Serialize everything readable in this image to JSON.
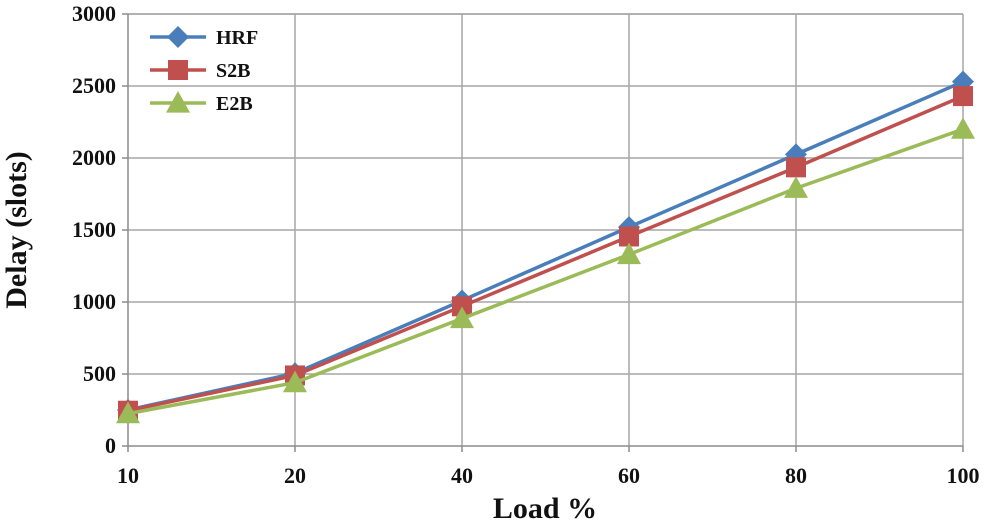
{
  "chart_data": {
    "type": "line",
    "categories": [
      "10",
      "20",
      "40",
      "60",
      "80",
      "100"
    ],
    "xlabel": "Load %",
    "ylabel": "Delay (slots)",
    "ylim": [
      0,
      3000
    ],
    "yticks": [
      0,
      500,
      1000,
      1500,
      2000,
      2500,
      3000
    ],
    "grid": true,
    "legend_position": "top-left",
    "series": [
      {
        "name": "HRF",
        "color": "#4a7ebb",
        "marker": "diamond",
        "values": [
          250,
          505,
          1010,
          1520,
          2025,
          2530
        ]
      },
      {
        "name": "S2B",
        "color": "#c0504d",
        "marker": "square",
        "values": [
          245,
          490,
          970,
          1455,
          1935,
          2430
        ]
      },
      {
        "name": "E2B",
        "color": "#9bbb59",
        "marker": "triangle",
        "values": [
          225,
          440,
          885,
          1330,
          1790,
          2200
        ]
      }
    ]
  }
}
